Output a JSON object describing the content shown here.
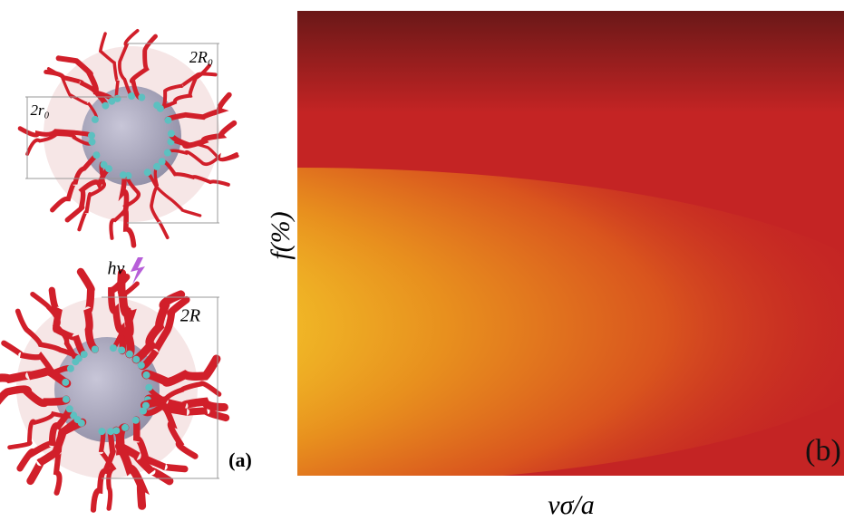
{
  "panel_a": {
    "label_outer_diameter": "2R₀",
    "label_core_diameter": "2r₀",
    "light_label": "hν",
    "label_diameter_after": "2R",
    "panel_label": "(a)"
  },
  "panel_b": {
    "y_label": "f(%)",
    "x_label": "νσ/a",
    "panel_label": "(b)"
  }
}
